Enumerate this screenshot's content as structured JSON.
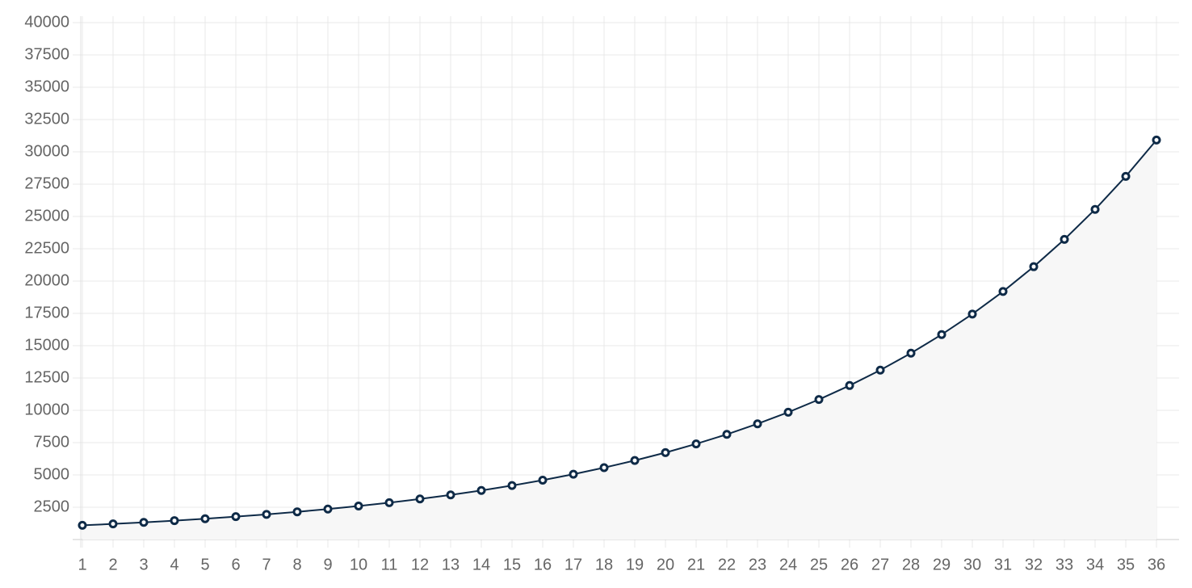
{
  "chart_data": {
    "type": "line",
    "categories": [
      "1",
      "2",
      "3",
      "4",
      "5",
      "6",
      "7",
      "8",
      "9",
      "10",
      "11",
      "12",
      "13",
      "14",
      "15",
      "16",
      "17",
      "18",
      "19",
      "20",
      "21",
      "22",
      "23",
      "24",
      "25",
      "26",
      "27",
      "28",
      "29",
      "30",
      "31",
      "32",
      "33",
      "34",
      "35",
      "36"
    ],
    "series": [
      {
        "color": "#0e2a47",
        "fill": "#f7f7f7",
        "values": [
          1100,
          1210,
          1331,
          1464,
          1611,
          1772,
          1949,
          2144,
          2358,
          2594,
          2853,
          3138,
          3452,
          3798,
          4177,
          4595,
          5054,
          5560,
          6116,
          6728,
          7400,
          8140,
          8954,
          9850,
          10835,
          11918,
          13110,
          14421,
          15863,
          17449,
          19194,
          21114,
          23225,
          25548,
          28102,
          30913
        ]
      }
    ],
    "ylim": [
      0,
      40000
    ],
    "yticks": [
      2500,
      5000,
      7500,
      10000,
      12500,
      15000,
      17500,
      20000,
      22500,
      25000,
      27500,
      30000,
      32500,
      35000,
      37500,
      40000
    ],
    "grid": true
  }
}
